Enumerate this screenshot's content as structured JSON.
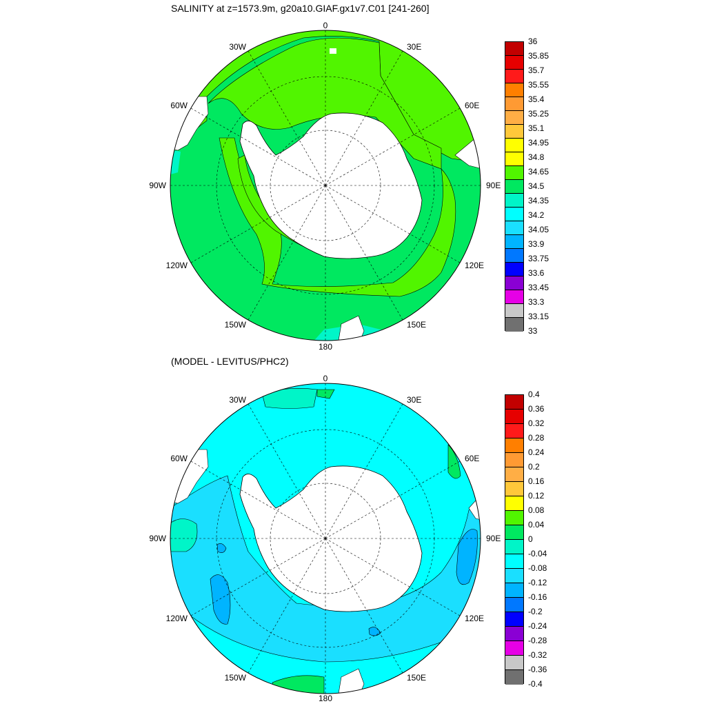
{
  "panels": [
    {
      "title": "SALINITY at z=1573.9m, g20a10.GIAF.gx1v7.C01 [241-260]",
      "lon_labels": [
        "0",
        "30E",
        "60E",
        "90E",
        "120E",
        "150E",
        "180",
        "150W",
        "120W",
        "90W",
        "60W",
        "30W"
      ],
      "colorbar": {
        "ticks": [
          "36",
          "35.85",
          "35.7",
          "35.55",
          "35.4",
          "35.25",
          "35.1",
          "34.95",
          "34.8",
          "34.65",
          "34.5",
          "34.35",
          "34.2",
          "34.05",
          "33.9",
          "33.75",
          "33.6",
          "33.45",
          "33.3",
          "33.15",
          "33"
        ],
        "colors": [
          "#c20000",
          "#e60000",
          "#ff1a1a",
          "#ff7f00",
          "#ff9a33",
          "#ffae45",
          "#ffc83a",
          "#ffff00",
          "#ffff00",
          "#51f500",
          "#00e860",
          "#00f5c8",
          "#00ffff",
          "#1adfff",
          "#00b4ff",
          "#0078ff",
          "#0000ff",
          "#8a00d4",
          "#e600e6",
          "#c8c8c8",
          "#707070"
        ]
      }
    },
    {
      "title": "(MODEL - LEVITUS/PHC2)",
      "lon_labels": [
        "0",
        "30E",
        "60E",
        "90E",
        "120E",
        "150E",
        "180",
        "150W",
        "120W",
        "90W",
        "60W",
        "30W"
      ],
      "colorbar": {
        "ticks": [
          "0.4",
          "0.36",
          "0.32",
          "0.28",
          "0.24",
          "0.2",
          "0.16",
          "0.12",
          "0.08",
          "0.04",
          "0",
          "-0.04",
          "-0.08",
          "-0.12",
          "-0.16",
          "-0.2",
          "-0.24",
          "-0.28",
          "-0.32",
          "-0.36",
          "-0.4"
        ],
        "colors": [
          "#c20000",
          "#e60000",
          "#ff1a1a",
          "#ff7f00",
          "#ff9a33",
          "#ffae45",
          "#ffc83a",
          "#ffff00",
          "#51f500",
          "#00e860",
          "#00f5c8",
          "#00ffff",
          "#1adfff",
          "#00b4ff",
          "#0078ff",
          "#0000ff",
          "#8a00d4",
          "#e600e6",
          "#c8c8c8",
          "#707070"
        ]
      }
    }
  ],
  "palette": {
    "salinity_main": "#51f500",
    "salinity_secondary": "#00e860",
    "salinity_low": "#00f5c8",
    "diff_main": "#00ffff",
    "diff_secondary": "#1adfff",
    "diff_tertiary": "#00b4ff",
    "diff_green": "#00e860",
    "land": "#ffffff"
  }
}
